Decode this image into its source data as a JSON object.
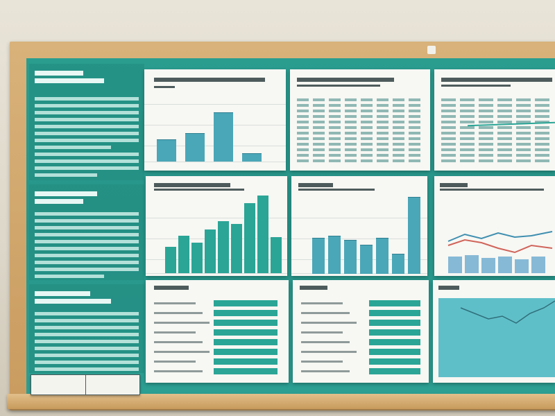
{
  "scene": {
    "description_colors": {
      "board": "#2a9d8f",
      "frame": "#c99b5f",
      "paper": "#f7f7f3",
      "bar": "#4aa7b8"
    }
  },
  "charts": {
    "c1_bars": [
      0.35,
      0.45,
      0.78,
      0.12
    ],
    "c2_bars": [
      0.33,
      0.47,
      0.38,
      0.55,
      0.65,
      0.62,
      0.88,
      0.97,
      0.45
    ],
    "c3_bars": [
      0.44,
      0.47,
      0.42,
      0.36,
      0.44,
      0.24,
      0.96
    ]
  }
}
